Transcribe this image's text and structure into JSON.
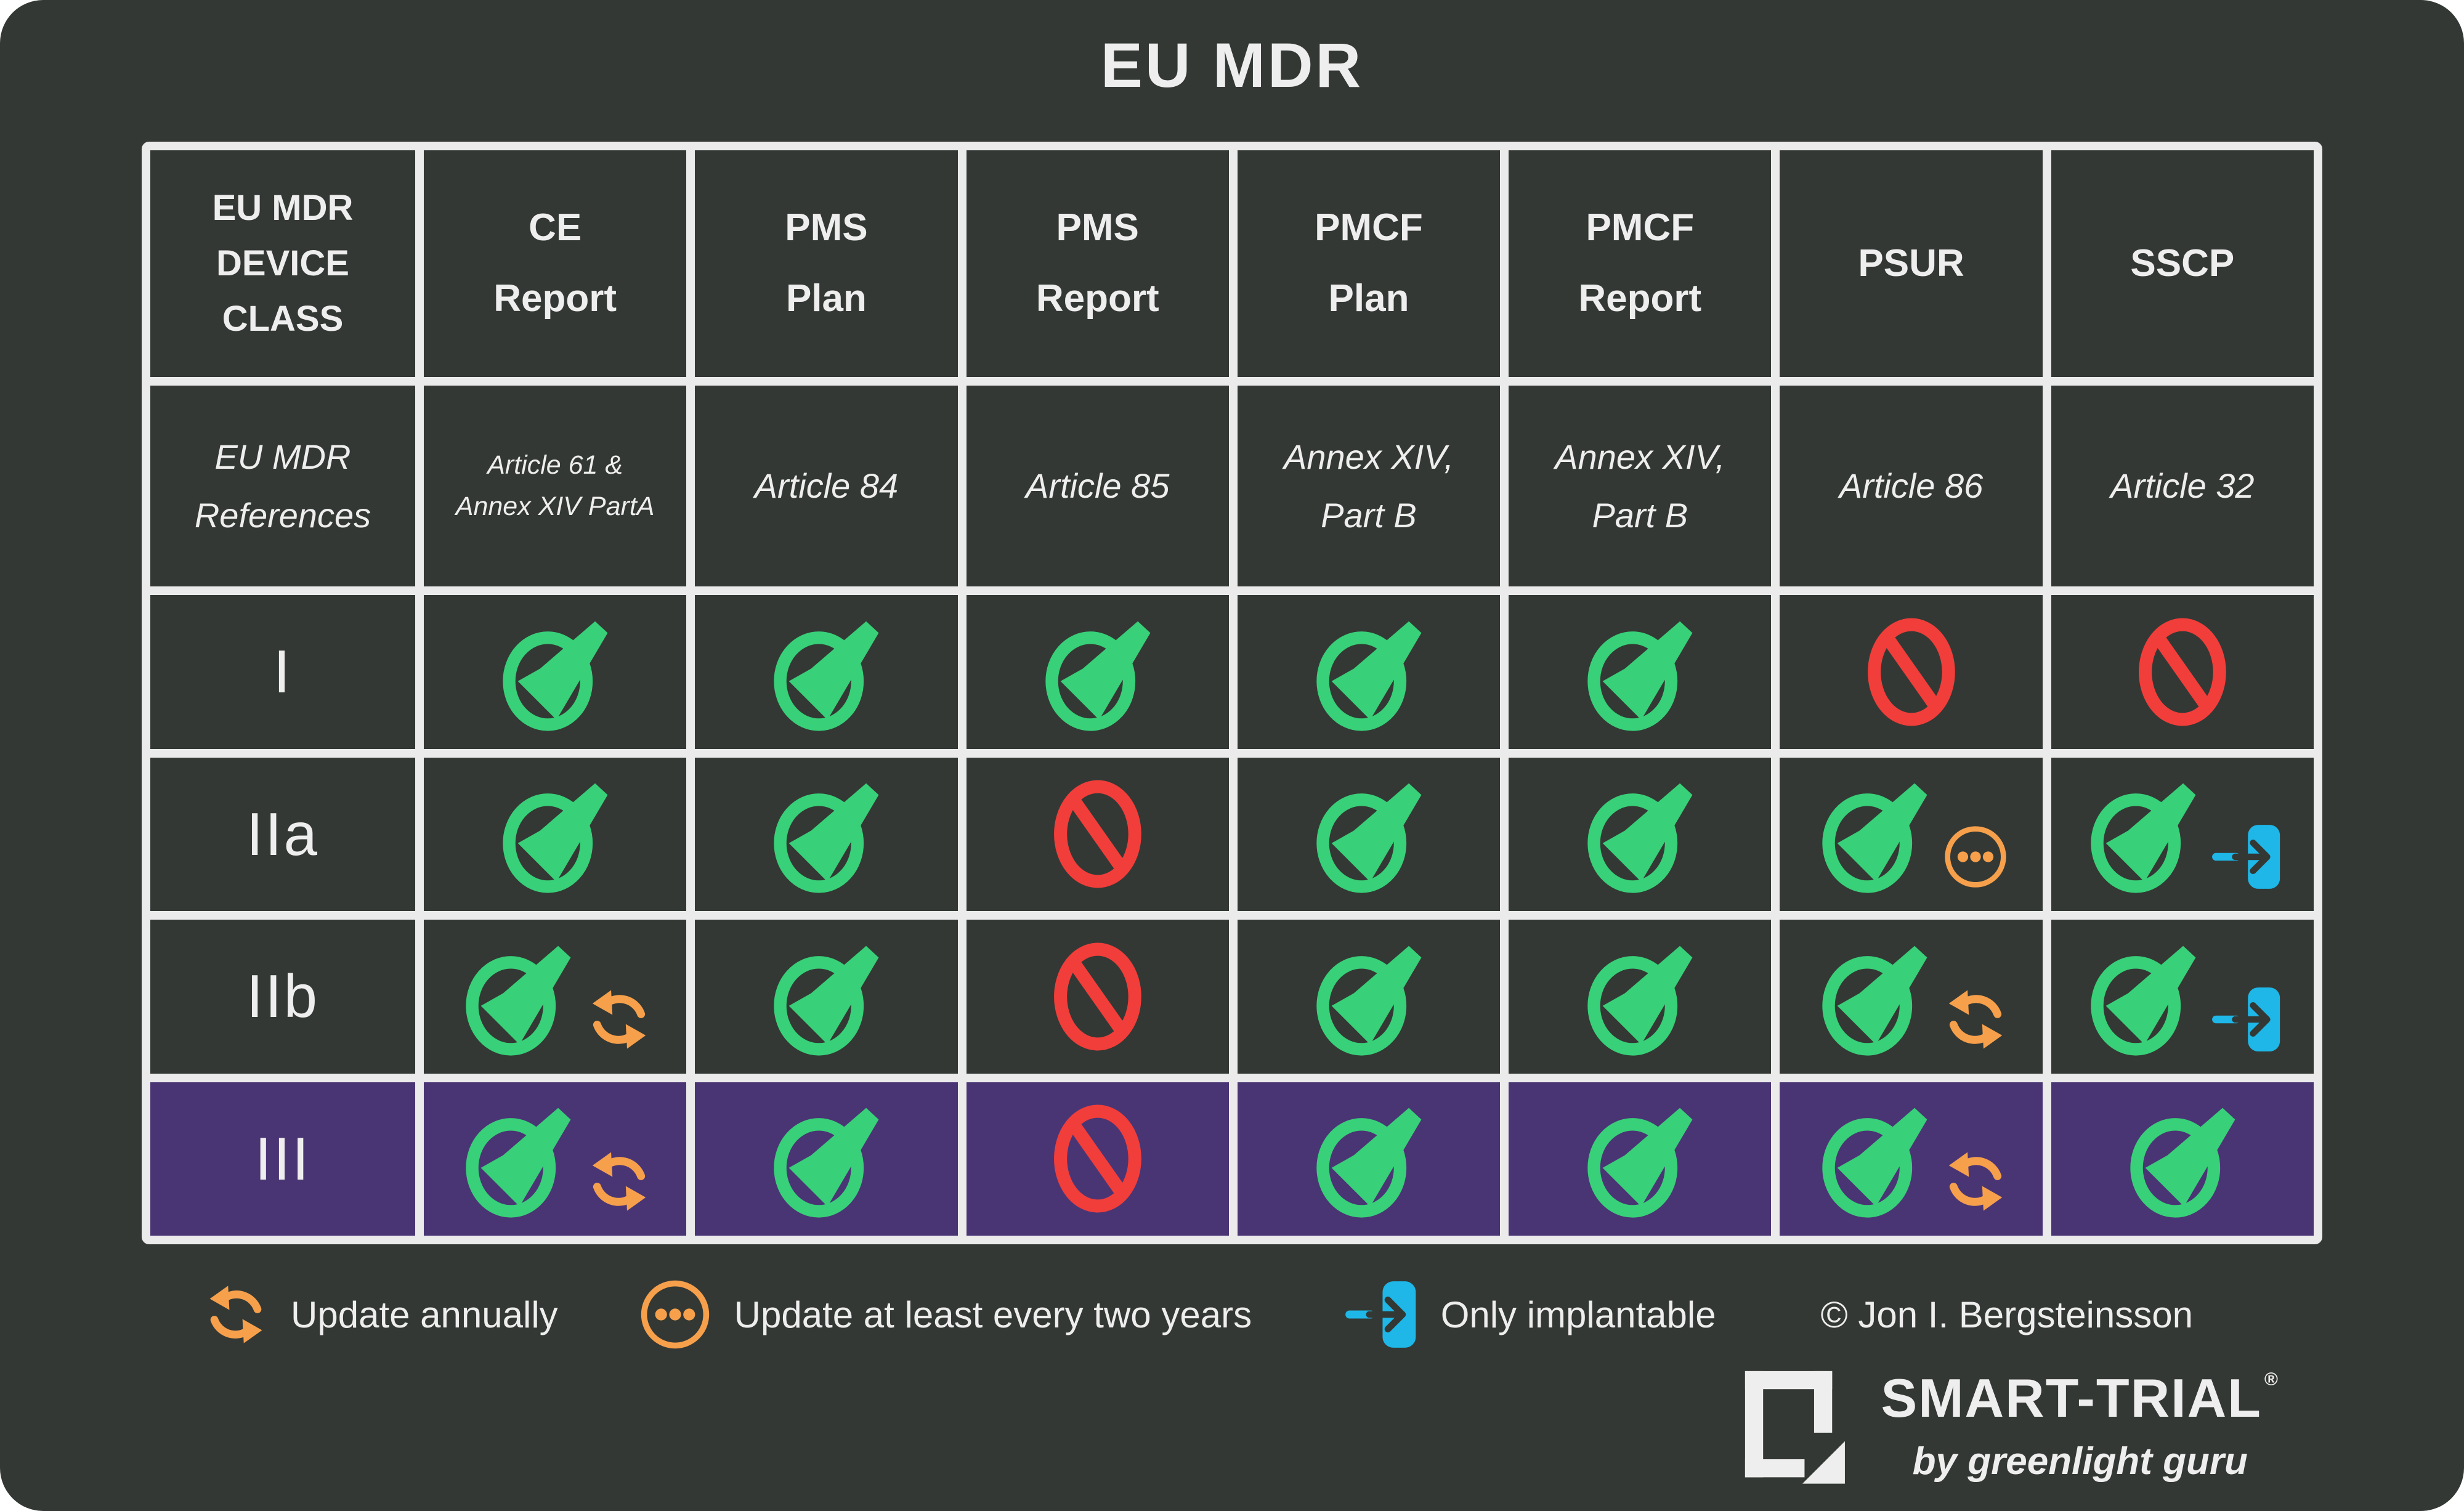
{
  "title": "EU MDR",
  "colors": {
    "background": "#333834",
    "panel_text": "#efeeee",
    "grid_line": "#ebebeb",
    "purple_row": "#4a3574",
    "green_check": "#38d078",
    "red_no": "#f13e3a",
    "orange_update": "#f7a04c",
    "blue_implant": "#1eb7e8"
  },
  "table": {
    "columns": [
      {
        "key": "device_class",
        "label": "EU MDR\nDEVICE\nCLASS",
        "reference": "EU MDR\nReferences"
      },
      {
        "key": "ce_report",
        "label": "CE\nReport",
        "reference": "Article 61 &\nAnnex XIV PartA"
      },
      {
        "key": "pms_plan",
        "label": "PMS\nPlan",
        "reference": "Article 84"
      },
      {
        "key": "pms_report",
        "label": "PMS\nReport",
        "reference": "Article 85"
      },
      {
        "key": "pmcf_plan",
        "label": "PMCF\nPlan",
        "reference": "Annex XIV,\nPart B"
      },
      {
        "key": "pmcf_report",
        "label": "PMCF\nReport",
        "reference": "Annex XIV,\nPart B"
      },
      {
        "key": "psur",
        "label": "PSUR",
        "reference": "Article 86"
      },
      {
        "key": "sscp",
        "label": "SSCP",
        "reference": "Article 32"
      }
    ],
    "rows": [
      {
        "class": "I",
        "highlight": false,
        "cells": [
          [
            "check"
          ],
          [
            "check"
          ],
          [
            "check"
          ],
          [
            "check"
          ],
          [
            "check"
          ],
          [
            "no"
          ],
          [
            "no"
          ]
        ]
      },
      {
        "class": "IIa",
        "highlight": false,
        "cells": [
          [
            "check"
          ],
          [
            "check"
          ],
          [
            "no"
          ],
          [
            "check"
          ],
          [
            "check"
          ],
          [
            "check",
            "dots"
          ],
          [
            "check",
            "implant"
          ]
        ]
      },
      {
        "class": "IIb",
        "highlight": false,
        "cells": [
          [
            "check",
            "refresh"
          ],
          [
            "check"
          ],
          [
            "no"
          ],
          [
            "check"
          ],
          [
            "check"
          ],
          [
            "check",
            "refresh"
          ],
          [
            "check",
            "implant"
          ]
        ]
      },
      {
        "class": "III",
        "highlight": true,
        "cells": [
          [
            "check",
            "refresh"
          ],
          [
            "check"
          ],
          [
            "no"
          ],
          [
            "check"
          ],
          [
            "check"
          ],
          [
            "check",
            "refresh"
          ],
          [
            "check"
          ]
        ]
      }
    ]
  },
  "legend": [
    {
      "icon": "refresh",
      "label": "Update annually"
    },
    {
      "icon": "dots",
      "label": "Update at least every two years"
    },
    {
      "icon": "implant",
      "label": "Only implantable"
    }
  ],
  "copyright": "© Jon I. Bergsteinsson",
  "logo": {
    "name": "SMART-TRIAL",
    "registered": "®",
    "tagline": "by greenlight guru"
  },
  "chart_data": {
    "type": "table",
    "title": "EU MDR",
    "columns": [
      "EU MDR DEVICE CLASS",
      "CE Report",
      "PMS Plan",
      "PMS Report",
      "PMCF Plan",
      "PMCF Report",
      "PSUR",
      "SSCP"
    ],
    "references": [
      "EU MDR References",
      "Article 61 & Annex XIV PartA",
      "Article 84",
      "Article 85",
      "Annex XIV, Part B",
      "Annex XIV, Part B",
      "Article 86",
      "Article 32"
    ],
    "rows": [
      {
        "device_class": "I",
        "values": [
          "required",
          "required",
          "required",
          "required",
          "required",
          "not-required",
          "not-required"
        ]
      },
      {
        "device_class": "IIa",
        "values": [
          "required",
          "required",
          "not-required",
          "required",
          "required",
          "required + update at least every two years",
          "required + only implantable"
        ]
      },
      {
        "device_class": "IIb",
        "values": [
          "required + update annually",
          "required",
          "not-required",
          "required",
          "required",
          "required + update annually",
          "required + only implantable"
        ]
      },
      {
        "device_class": "III",
        "values": [
          "required + update annually",
          "required",
          "not-required",
          "required",
          "required",
          "required + update annually",
          "required"
        ]
      }
    ],
    "legend": [
      "Update annually",
      "Update at least every two years",
      "Only implantable"
    ],
    "layout_hints": {
      "highlighted_row": "III",
      "highlight_color": "#4a3574",
      "grid": true
    }
  }
}
